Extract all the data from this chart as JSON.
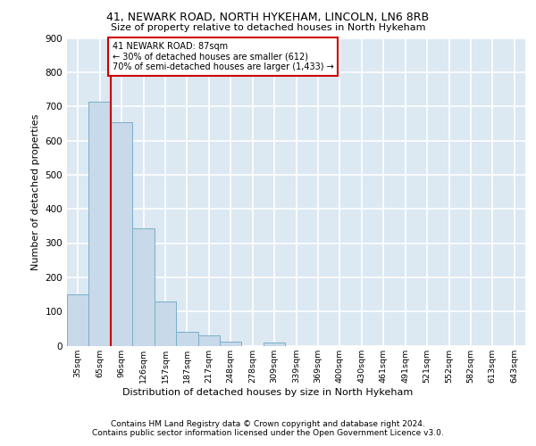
{
  "title1": "41, NEWARK ROAD, NORTH HYKEHAM, LINCOLN, LN6 8RB",
  "title2": "Size of property relative to detached houses in North Hykeham",
  "xlabel": "Distribution of detached houses by size in North Hykeham",
  "ylabel": "Number of detached properties",
  "footer1": "Contains HM Land Registry data © Crown copyright and database right 2024.",
  "footer2": "Contains public sector information licensed under the Open Government Licence v3.0.",
  "bar_labels": [
    "35sqm",
    "65sqm",
    "96sqm",
    "126sqm",
    "157sqm",
    "187sqm",
    "217sqm",
    "248sqm",
    "278sqm",
    "309sqm",
    "339sqm",
    "369sqm",
    "400sqm",
    "430sqm",
    "461sqm",
    "491sqm",
    "521sqm",
    "552sqm",
    "582sqm",
    "613sqm",
    "643sqm"
  ],
  "bar_values": [
    150,
    713,
    653,
    343,
    130,
    40,
    30,
    12,
    0,
    8,
    0,
    0,
    0,
    0,
    0,
    0,
    0,
    0,
    0,
    0,
    0
  ],
  "bar_color": "#c8d9ea",
  "bar_edge_color": "#7aafc8",
  "bg_color": "#dce8f2",
  "grid_color": "#ffffff",
  "annotation_text": "41 NEWARK ROAD: 87sqm\n← 30% of detached houses are smaller (612)\n70% of semi-detached houses are larger (1,433) →",
  "vline_x": 1.5,
  "vline_color": "#cc0000",
  "annotation_box_color": "#cc0000",
  "ylim": [
    0,
    900
  ],
  "yticks": [
    0,
    100,
    200,
    300,
    400,
    500,
    600,
    700,
    800,
    900
  ]
}
